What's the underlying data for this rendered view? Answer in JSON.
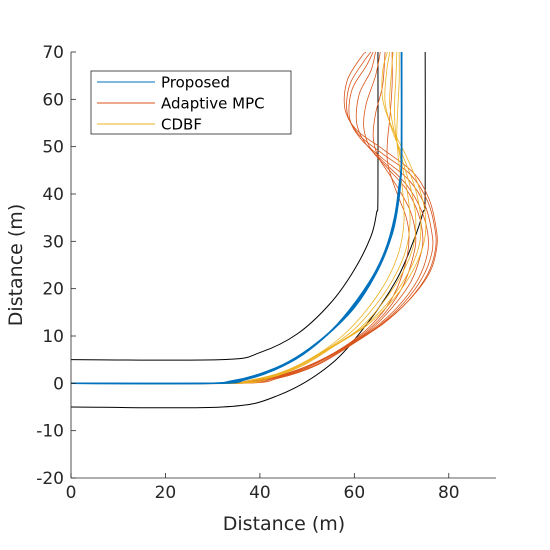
{
  "chart_data": {
    "type": "line",
    "xlabel": "Distance (m)",
    "ylabel": "Distance (m)",
    "xlim": [
      0,
      90
    ],
    "ylim": [
      -20,
      70
    ],
    "xticks": [
      0,
      20,
      40,
      60,
      80
    ],
    "yticks": [
      -20,
      -10,
      0,
      10,
      20,
      30,
      40,
      50,
      60,
      70
    ],
    "grid": false,
    "legend_position": "top-left",
    "road": {
      "outer": [
        [
          0,
          -5
        ],
        [
          32,
          -5
        ],
        [
          44,
          -2.5
        ],
        [
          55,
          4
        ],
        [
          63,
          13
        ],
        [
          69,
          22
        ],
        [
          72.5,
          30
        ],
        [
          74.5,
          36
        ],
        [
          75,
          40
        ],
        [
          75,
          70
        ]
      ],
      "inner": [
        [
          0,
          5
        ],
        [
          32,
          5
        ],
        [
          40,
          6.5
        ],
        [
          48,
          10.5
        ],
        [
          55,
          17
        ],
        [
          60,
          24
        ],
        [
          63.5,
          31
        ],
        [
          64.7,
          36
        ],
        [
          65,
          40
        ],
        [
          65,
          70
        ]
      ]
    },
    "series": [
      {
        "name": "Proposed",
        "color": "#0072BD",
        "runs": [
          [
            [
              0,
              0
            ],
            [
              28,
              0
            ],
            [
              34,
              0.5
            ],
            [
              40,
              2
            ],
            [
              46,
              4.5
            ],
            [
              52,
              8.5
            ],
            [
              58,
              14
            ],
            [
              63,
              21
            ],
            [
              66.5,
              28
            ],
            [
              68.5,
              35
            ],
            [
              69.5,
              42
            ],
            [
              70,
              48
            ],
            [
              70,
              70
            ]
          ],
          [
            [
              0,
              0
            ],
            [
              30,
              0
            ],
            [
              36,
              0.7
            ],
            [
              42,
              2.5
            ],
            [
              48,
              5.5
            ],
            [
              54,
              10
            ],
            [
              60,
              16
            ],
            [
              64.5,
              23
            ],
            [
              67.5,
              30
            ],
            [
              69,
              37
            ],
            [
              69.8,
              43
            ],
            [
              70,
              49
            ],
            [
              70,
              70
            ]
          ],
          [
            [
              0,
              0
            ],
            [
              29,
              0
            ],
            [
              35,
              0.6
            ],
            [
              41,
              2.2
            ],
            [
              47,
              5
            ],
            [
              53,
              9.2
            ],
            [
              59,
              15.2
            ],
            [
              63.8,
              22
            ],
            [
              67,
              29
            ],
            [
              68.8,
              36
            ],
            [
              69.7,
              42.5
            ],
            [
              70,
              48.5
            ],
            [
              70,
              70
            ]
          ],
          [
            [
              0,
              0
            ],
            [
              31,
              0
            ],
            [
              37,
              0.8
            ],
            [
              43,
              2.8
            ],
            [
              49,
              6
            ],
            [
              55,
              11
            ],
            [
              60.5,
              17.5
            ],
            [
              65,
              24.5
            ],
            [
              68,
              31.5
            ],
            [
              69.3,
              38
            ],
            [
              69.9,
              44
            ],
            [
              70,
              49.5
            ],
            [
              70,
              70
            ]
          ]
        ]
      },
      {
        "name": "Adaptive MPC",
        "color": "#D95319",
        "runs": [
          [
            [
              0,
              0
            ],
            [
              30,
              0
            ],
            [
              38,
              0.5
            ],
            [
              46,
              2.2
            ],
            [
              54,
              5.5
            ],
            [
              61,
              10
            ],
            [
              66,
              15
            ],
            [
              69,
              20
            ],
            [
              71,
              26
            ],
            [
              71.6,
              31
            ],
            [
              71,
              35
            ],
            [
              69.5,
              39
            ],
            [
              68,
              43
            ],
            [
              67,
              47
            ],
            [
              67,
              51
            ],
            [
              67.5,
              56
            ],
            [
              68,
              63
            ],
            [
              68,
              70
            ]
          ],
          [
            [
              0,
              0
            ],
            [
              31,
              0
            ],
            [
              39,
              0.6
            ],
            [
              47,
              2.5
            ],
            [
              55,
              6
            ],
            [
              62,
              10.5
            ],
            [
              67,
              15.5
            ],
            [
              70.5,
              21
            ],
            [
              72.5,
              27
            ],
            [
              73,
              31
            ],
            [
              72,
              36
            ],
            [
              70,
              40
            ],
            [
              67.5,
              44
            ],
            [
              65,
              48
            ],
            [
              64,
              52
            ],
            [
              64.5,
              57
            ],
            [
              66,
              63
            ],
            [
              66.5,
              70
            ]
          ],
          [
            [
              0,
              0
            ],
            [
              32,
              0
            ],
            [
              40,
              0.7
            ],
            [
              48,
              2.8
            ],
            [
              56,
              6.5
            ],
            [
              63,
              11
            ],
            [
              68,
              16
            ],
            [
              72,
              21.5
            ],
            [
              74,
              27
            ],
            [
              74.5,
              31
            ],
            [
              73.5,
              36
            ],
            [
              71,
              41
            ],
            [
              67,
              45.5
            ],
            [
              63.5,
              49.5
            ],
            [
              62,
              54
            ],
            [
              62.5,
              59
            ],
            [
              64.5,
              65
            ],
            [
              65.5,
              70
            ]
          ],
          [
            [
              0,
              0
            ],
            [
              33,
              0
            ],
            [
              41,
              0.8
            ],
            [
              49,
              3
            ],
            [
              57,
              7
            ],
            [
              64,
              11.5
            ],
            [
              69.5,
              16.5
            ],
            [
              73.5,
              22
            ],
            [
              75.5,
              27.5
            ],
            [
              75.5,
              32
            ],
            [
              74,
              37
            ],
            [
              71,
              42
            ],
            [
              66.5,
              46.5
            ],
            [
              62.5,
              50.5
            ],
            [
              60.5,
              55
            ],
            [
              61,
              61
            ],
            [
              63.5,
              66
            ],
            [
              64.5,
              70
            ]
          ],
          [
            [
              0,
              0
            ],
            [
              34,
              0
            ],
            [
              42,
              0.9
            ],
            [
              50,
              3.3
            ],
            [
              58,
              7.5
            ],
            [
              65,
              12
            ],
            [
              70.5,
              17
            ],
            [
              74.5,
              22.5
            ],
            [
              76.5,
              28
            ],
            [
              76.3,
              32.5
            ],
            [
              74.8,
              38
            ],
            [
              71.5,
              43
            ],
            [
              66,
              47.5
            ],
            [
              61.5,
              51.5
            ],
            [
              59,
              56
            ],
            [
              59.5,
              62
            ],
            [
              62.5,
              67
            ],
            [
              64,
              70
            ]
          ],
          [
            [
              0,
              0
            ],
            [
              35,
              0
            ],
            [
              43,
              1
            ],
            [
              51,
              3.5
            ],
            [
              59,
              8
            ],
            [
              66,
              12.5
            ],
            [
              71.5,
              17.5
            ],
            [
              75.5,
              23
            ],
            [
              77.2,
              28.5
            ],
            [
              77,
              33
            ],
            [
              75.5,
              38.5
            ],
            [
              72,
              44
            ],
            [
              66,
              48.5
            ],
            [
              61,
              52.5
            ],
            [
              58.5,
              57
            ],
            [
              59,
              63
            ],
            [
              62,
              68
            ],
            [
              63.5,
              70
            ]
          ],
          [
            [
              0,
              0
            ],
            [
              36,
              0
            ],
            [
              44,
              1.1
            ],
            [
              52,
              3.8
            ],
            [
              60,
              8.5
            ],
            [
              66.5,
              13
            ],
            [
              72,
              18
            ],
            [
              76,
              23.5
            ],
            [
              77.5,
              29
            ],
            [
              77.2,
              33.5
            ],
            [
              75.8,
              39
            ],
            [
              72.5,
              44.5
            ],
            [
              66,
              49.5
            ],
            [
              60.5,
              53.5
            ],
            [
              58,
              58
            ],
            [
              58.5,
              64
            ],
            [
              61.5,
              69
            ],
            [
              62.5,
              70
            ]
          ]
        ]
      },
      {
        "name": "CDBF",
        "color": "#EDB120",
        "runs": [
          [
            [
              0,
              0
            ],
            [
              31,
              0
            ],
            [
              38,
              0.7
            ],
            [
              45,
              2.5
            ],
            [
              52,
              6
            ],
            [
              58,
              10.5
            ],
            [
              63,
              16
            ],
            [
              67,
              22
            ],
            [
              69.5,
              28
            ],
            [
              70.5,
              34
            ],
            [
              70.3,
              40
            ],
            [
              69.5,
              46
            ],
            [
              69,
              52
            ],
            [
              69.2,
              58
            ],
            [
              69.5,
              64
            ],
            [
              69.5,
              70
            ]
          ],
          [
            [
              0,
              0
            ],
            [
              32,
              0
            ],
            [
              39,
              0.8
            ],
            [
              46,
              2.8
            ],
            [
              53,
              6.5
            ],
            [
              59.5,
              11
            ],
            [
              64.5,
              16.5
            ],
            [
              68.5,
              22.5
            ],
            [
              71,
              28.5
            ],
            [
              71.8,
              34.5
            ],
            [
              71.2,
              40.5
            ],
            [
              70,
              46.5
            ],
            [
              68.8,
              52.5
            ],
            [
              68.5,
              58.5
            ],
            [
              68.8,
              64.5
            ],
            [
              69,
              70
            ]
          ],
          [
            [
              0,
              0
            ],
            [
              33,
              0
            ],
            [
              40,
              0.9
            ],
            [
              47,
              3.1
            ],
            [
              54,
              7
            ],
            [
              61,
              11.5
            ],
            [
              66,
              17
            ],
            [
              70,
              23
            ],
            [
              72.5,
              29
            ],
            [
              73,
              35
            ],
            [
              72,
              41
            ],
            [
              70.2,
              47
            ],
            [
              68.5,
              53
            ],
            [
              67.5,
              59
            ],
            [
              67.8,
              65
            ],
            [
              68.2,
              70
            ]
          ],
          [
            [
              0,
              0
            ],
            [
              34,
              0
            ],
            [
              41,
              1
            ],
            [
              48,
              3.4
            ],
            [
              55,
              7.5
            ],
            [
              62,
              12
            ],
            [
              67.5,
              17.5
            ],
            [
              71.5,
              23.5
            ],
            [
              73.8,
              29.5
            ],
            [
              74,
              35.5
            ],
            [
              72.8,
              41.5
            ],
            [
              70.5,
              47.5
            ],
            [
              68,
              53.5
            ],
            [
              66.5,
              59.5
            ],
            [
              66.8,
              65.5
            ],
            [
              67.5,
              70
            ]
          ],
          [
            [
              0,
              0
            ],
            [
              35,
              0
            ],
            [
              42,
              1.1
            ],
            [
              49,
              3.7
            ],
            [
              56,
              8
            ],
            [
              63,
              12.5
            ],
            [
              68.5,
              18
            ],
            [
              72.5,
              24
            ],
            [
              74.8,
              30
            ],
            [
              75,
              36
            ],
            [
              73.5,
              42
            ],
            [
              71,
              48
            ],
            [
              68,
              54
            ],
            [
              66,
              60
            ],
            [
              66,
              66
            ],
            [
              67,
              70
            ]
          ]
        ]
      }
    ]
  }
}
